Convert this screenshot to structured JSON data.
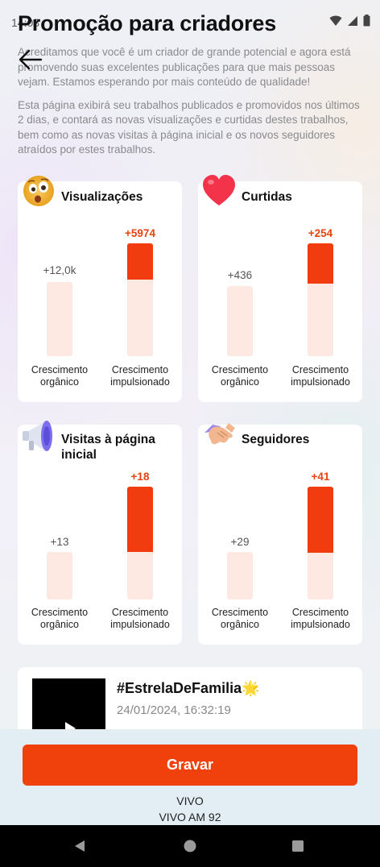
{
  "status_bar": {
    "time": "14:08"
  },
  "header": {
    "title": "Promoção para criadores"
  },
  "intro": {
    "paragraph1": "Acreditamos que você é um criador de grande potencial e agora está promovendo suas excelentes publicações para que mais pessoas vejam. Estamos esperando por mais conteúdo de qualidade!",
    "paragraph2": "Esta página exibirá seu trabalhos publicados e promovidos nos últimos 2 dias, e contará as novas visualizações e curtidas destes trabalhos, bem como as novas visitas à página inicial e os novos seguidores atraídos por estes trabalhos."
  },
  "labels": {
    "organic": "Crescimento orgânico",
    "boosted": "Crescimento impulsionado"
  },
  "cards": [
    {
      "title": "Visualizações",
      "emoji": "astonished-face-icon",
      "organic": "+12,0k",
      "boosted": "+5974",
      "boost_fraction": 0.32
    },
    {
      "title": "Curtidas",
      "emoji": "heart-icon",
      "organic": "+436",
      "boosted": "+254",
      "boost_fraction": 0.37
    },
    {
      "title": "Visitas à página inicial",
      "emoji": "megaphone-icon",
      "organic": "+13",
      "boosted": "+18",
      "boost_fraction": 0.58
    },
    {
      "title": "Seguidores",
      "emoji": "handshake-icon",
      "organic": "+29",
      "boosted": "+41",
      "boost_fraction": 0.59
    }
  ],
  "video": {
    "title": "#EstrelaDeFamilia🌟",
    "date": "24/01/2024, 16:32:19"
  },
  "record_button": "Gravar",
  "radio": {
    "line1": "VIVO",
    "line2": "VIVO AM 92"
  },
  "colors": {
    "accent": "#f03c0e",
    "bar_light": "#fde8e2",
    "boost_text": "#e7430e"
  }
}
